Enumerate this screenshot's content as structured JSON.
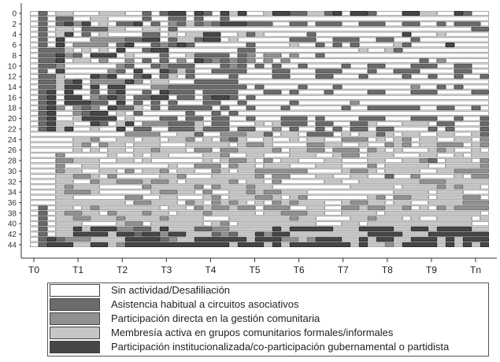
{
  "chart_data": {
    "type": "heatmap",
    "subtype": "sequence-index-plot",
    "y_tick_labels": [
      "0",
      "2",
      "4",
      "6",
      "8",
      "10",
      "12",
      "14",
      "16",
      "18",
      "20",
      "22",
      "24",
      "26",
      "28",
      "30",
      "32",
      "34",
      "36",
      "38",
      "40",
      "42",
      "44"
    ],
    "x_tick_labels": [
      "T0",
      "T1",
      "T2",
      "T3",
      "T4",
      "T5",
      "T6",
      "T7",
      "T8",
      "T9",
      "Tn"
    ],
    "states": [
      {
        "code": "0",
        "label": "Sin actividad/Desafiliación",
        "color": "#ffffff"
      },
      {
        "code": "1",
        "label": "Asistencia habitual a circuitos asociativos",
        "color": "#6b6b6b"
      },
      {
        "code": "2",
        "label": "Participación directa en la gestión comunitaria",
        "color": "#919191"
      },
      {
        "code": "3",
        "label": "Membresía activa en grupos comunitarios formales/informales",
        "color": "#c6c6c6"
      },
      {
        "code": "4",
        "label": "Participación institucionalizada/co-participación gubernamental o partidista",
        "color": "#474747"
      }
    ],
    "sequences": [
      "01033000333001014404104340034411331404410004433004100",
      "01011003300001001101001000000000000000000000000000000",
      "01014240301140102131214441110011011100111001100101110",
      "01033011133003301000000000000000000000000000000000011",
      "01034010300001103033440031300000100000000004000300000",
      "01040002222114401331440300000011100111001100100000000",
      "01040222201400121410000001000030010101000031000040000",
      "01113030304001440000000011000000000000300310000000000",
      "01142104440300010031111012022020010000000000000000000",
      "01140330200201010204121212020200000000000000010200000",
      "01120000002100121110001210101001000010011000111001100",
      "01040000021040041310011110001100011100010011100001100",
      "01130004140014013010000100001100011000100001001001001",
      "01131402222420330001111100000000000000000000000000000",
      "01134404044000221111111110100001000100000000200101000",
      "01404001014001041110111100011010001000011000111000011",
      "01404402141011440110144101000000000000000000000000000",
      "01404441104010101000110010000010000002000000000000000",
      "01420212041130101111101001000100000010011111100110010",
      "01400214403010000010010100000000000000000000000000000",
      "01400344440300011011011001000111010000111000111001001",
      "01433004103402221113011000303111011001130003330110001",
      "01434003004011001113111011002010010101101100001010001",
      "00000000000222200331002223310330111030331303300330031",
      "00000332003303303320302130030030330022203032033003302",
      "00000320233033300033333032230000223300300232033222032",
      "00000303033033233302202233332033220222023030003230030",
      "00020000030030330000332003300033300322033300033003033",
      "00022333003303000000303223020330003300033003321033302",
      "00020033000000003002220233033300033300020333330033332",
      "00023300330203320330023033222222000032230333300332222",
      "00033223020000033200033333202200033003300100200003022",
      "00033002332223223033333203302000003300333333322233333",
      "00032333000002333332023332330000000003333303333232330",
      "00032223000000322330200332322333000000000033330333000",
      "00033000000220033000320333223032000000032022330333220",
      "00033333333022333023023230302323330032233033003333222",
      "01033032333333303302322322022200330022322332030232222",
      "01032233023332330333233333033222330033330333333333330",
      "01033223332333323333000333333323300003323330300333303",
      "01033300003220333333032033333333300033033333333333300",
      "01033434442211343331122333334344444333444433443444433",
      "01033444434414424433312133424433333333344443334444444",
      "01412223333444412334444443444223244433434433444343444",
      "01444334432444444444444344434344444443433234444343434"
    ]
  }
}
